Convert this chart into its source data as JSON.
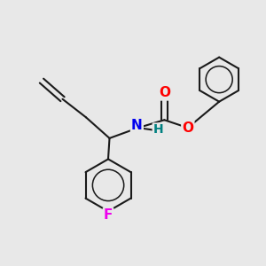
{
  "background_color": "#e8e8e8",
  "bond_color": "#1a1a1a",
  "bond_width": 1.5,
  "atom_colors": {
    "O": "#ff0000",
    "N": "#0000ee",
    "F": "#ee00ee",
    "H": "#008080"
  },
  "font_size_atoms": 11,
  "font_size_H": 10
}
